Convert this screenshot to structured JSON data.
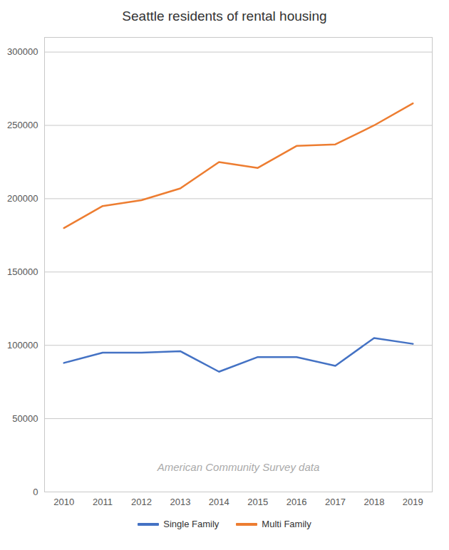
{
  "chart_data": {
    "type": "line",
    "title": "Seattle residents of rental housing",
    "x": [
      2010,
      2011,
      2012,
      2013,
      2014,
      2015,
      2016,
      2017,
      2018,
      2019
    ],
    "series": [
      {
        "name": "Single Family",
        "color": "#4472C4",
        "values": [
          88000,
          95000,
          95000,
          96000,
          82000,
          92000,
          92000,
          86000,
          105000,
          101000
        ]
      },
      {
        "name": "Multi Family",
        "color": "#ED7D31",
        "values": [
          180000,
          195000,
          199000,
          207000,
          225000,
          221000,
          236000,
          237000,
          250000,
          265000
        ]
      }
    ],
    "xlim": [
      2009.5,
      2019.5
    ],
    "xticks": [
      2010,
      2011,
      2012,
      2013,
      2014,
      2015,
      2016,
      2017,
      2018,
      2019
    ],
    "ylim": [
      0,
      310000
    ],
    "yticks": [
      0,
      50000,
      100000,
      150000,
      200000,
      250000,
      300000
    ],
    "grid": true,
    "legend": "bottom",
    "annotations": [
      "American Community Survey data"
    ]
  }
}
